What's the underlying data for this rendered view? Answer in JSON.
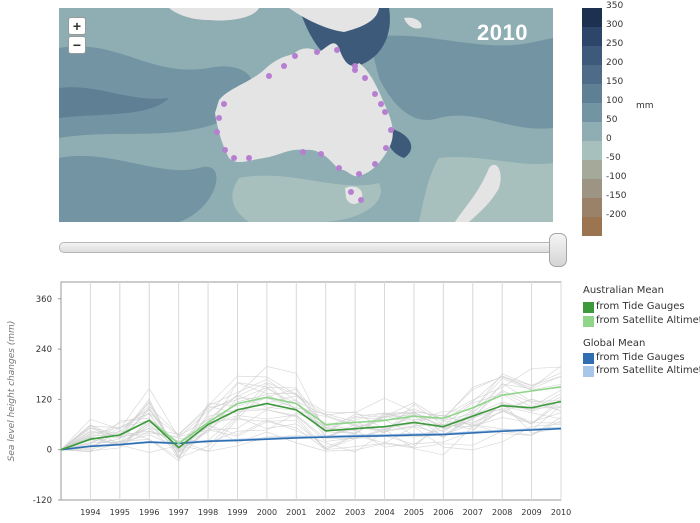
{
  "map": {
    "year": "2010",
    "zoom_in_label": "+",
    "zoom_out_label": "−"
  },
  "color_scale": {
    "unit": "mm",
    "items": [
      {
        "label": "350",
        "color": "#1d3050"
      },
      {
        "label": "300",
        "color": "#2c4569"
      },
      {
        "label": "250",
        "color": "#3e5a7b"
      },
      {
        "label": "200",
        "color": "#4e6c88"
      },
      {
        "label": "150",
        "color": "#5f7f95"
      },
      {
        "label": "100",
        "color": "#7394a3"
      },
      {
        "label": "50",
        "color": "#8faeb3"
      },
      {
        "label": "0",
        "color": "#a7c0bd"
      },
      {
        "label": "-50",
        "color": "#a5a999"
      },
      {
        "label": "-100",
        "color": "#9e9484"
      },
      {
        "label": "-150",
        "color": "#9a8268"
      },
      {
        "label": "-200",
        "color": "#9b7550"
      }
    ]
  },
  "slider": {
    "value_year": "2010"
  },
  "legend": {
    "australian_title": "Australian Mean",
    "australian_tide": "from Tide Gauges",
    "australian_sat": "from Satellite Altimeter",
    "global_title": "Global Mean",
    "global_tide": "from Tide Gauges",
    "global_sat": "from Satellite Altimeter",
    "colors": {
      "australian_tide": "#3c9a3c",
      "australian_sat": "#8fd68a",
      "global_tide": "#2f6fb1",
      "global_sat": "#a8c6e8"
    }
  },
  "chart_data": {
    "type": "line",
    "ylabel": "Sea level height changes (mm)",
    "xlabel": "",
    "x": [
      1993,
      1994,
      1995,
      1996,
      1997,
      1998,
      1999,
      2000,
      2001,
      2002,
      2003,
      2004,
      2005,
      2006,
      2007,
      2008,
      2009,
      2010
    ],
    "xtick_labels": [
      "1994",
      "1995",
      "1996",
      "1997",
      "1998",
      "1999",
      "2000",
      "2001",
      "2002",
      "2003",
      "2004",
      "2005",
      "2006",
      "2007",
      "2008",
      "2009",
      "2010"
    ],
    "yticks": [
      360,
      240,
      120,
      0,
      -120
    ],
    "ylim": [
      -120,
      400
    ],
    "series": [
      {
        "name": "from Tide Gauges",
        "group": "Australian Mean",
        "values": [
          0,
          25,
          35,
          70,
          5,
          60,
          95,
          110,
          95,
          45,
          50,
          55,
          65,
          55,
          80,
          105,
          100,
          115
        ]
      },
      {
        "name": "from Satellite Altimeter",
        "group": "Australian Mean",
        "values": [
          0,
          25,
          35,
          70,
          15,
          65,
          110,
          125,
          110,
          60,
          65,
          70,
          80,
          75,
          100,
          130,
          140,
          150
        ]
      },
      {
        "name": "from Tide Gauges",
        "group": "Global Mean",
        "values": [
          0,
          8,
          12,
          18,
          15,
          20,
          22,
          25,
          28,
          30,
          32,
          33,
          35,
          36,
          40,
          44,
          47,
          50
        ]
      },
      {
        "name": "from Satellite Altimeter",
        "group": "Global Mean",
        "values": [
          0,
          9,
          13,
          19,
          16,
          21,
          24,
          27,
          30,
          32,
          34,
          35,
          37,
          38,
          42,
          46,
          49,
          52
        ]
      }
    ],
    "grid": true
  }
}
